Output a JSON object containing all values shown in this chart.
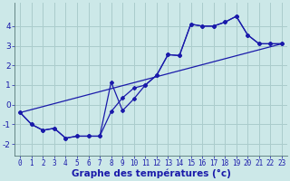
{
  "xlabel": "Graphe des températures (°c)",
  "background_color": "#cce8e8",
  "grid_color": "#aacccc",
  "line_color": "#1a1aaa",
  "xlim": [
    -0.5,
    23.5
  ],
  "ylim": [
    -2.6,
    5.2
  ],
  "xticks": [
    0,
    1,
    2,
    3,
    4,
    5,
    6,
    7,
    8,
    9,
    10,
    11,
    12,
    13,
    14,
    15,
    16,
    17,
    18,
    19,
    20,
    21,
    22,
    23
  ],
  "yticks": [
    -2,
    -1,
    0,
    1,
    2,
    3,
    4
  ],
  "x": [
    0,
    1,
    2,
    3,
    4,
    5,
    6,
    7,
    8,
    9,
    10,
    11,
    12,
    13,
    14,
    15,
    16,
    17,
    18,
    19,
    20,
    21,
    22,
    23
  ],
  "line1_y": [
    -0.4,
    -1.0,
    -1.3,
    -1.2,
    -1.7,
    -1.6,
    -1.6,
    -1.6,
    -0.35,
    0.35,
    0.85,
    1.0,
    1.5,
    2.55,
    2.5,
    4.1,
    4.0,
    4.0,
    4.2,
    4.5,
    3.55,
    3.1,
    3.1,
    3.1
  ],
  "line2_y": [
    -0.4,
    -1.0,
    -1.3,
    -1.2,
    -1.7,
    -1.6,
    -1.6,
    -1.6,
    1.15,
    -0.3,
    0.3,
    1.0,
    1.5,
    2.55,
    2.5,
    4.1,
    4.0,
    4.0,
    4.2,
    4.5,
    3.55,
    3.1,
    3.1,
    3.1
  ],
  "line3_x": [
    0,
    23
  ],
  "line3_y": [
    -0.4,
    3.1
  ],
  "xlabel_fontsize": 7.5,
  "tick_fontsize": 5.5,
  "ytick_fontsize": 6.5
}
